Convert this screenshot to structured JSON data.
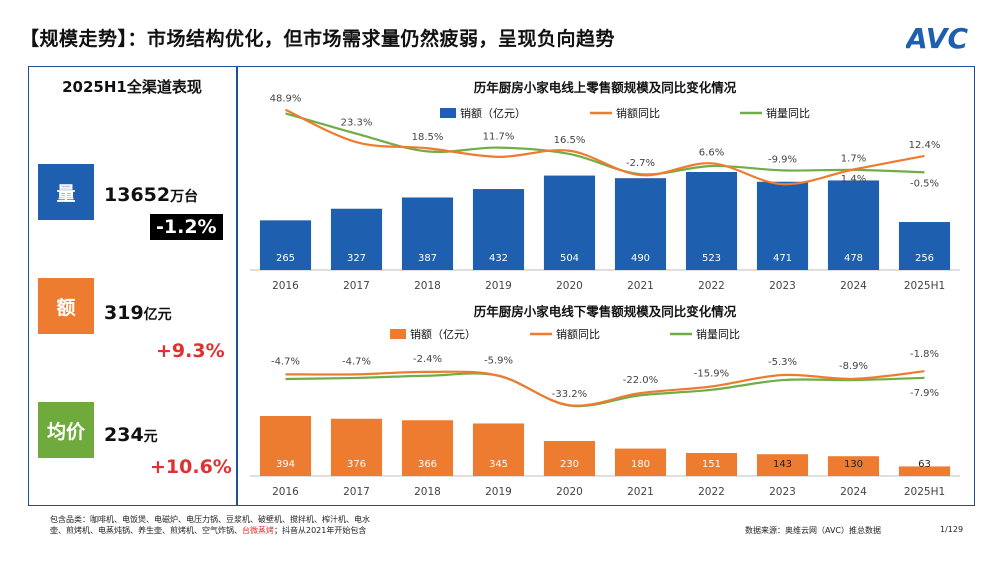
{
  "title": "【规模走势】：市场结构优化，但市场需求量仍然疲弱，呈现负向趋势",
  "logo_text": "AVC",
  "left_panel": {
    "title": "2025H1全渠道表现",
    "metrics": [
      {
        "tile": "量",
        "value": "13652",
        "unit": "万台",
        "change": "-1.2%",
        "color": "#1f5fb0"
      },
      {
        "tile": "额",
        "value": "319",
        "unit": "亿元",
        "change": "+9.3%",
        "color": "#ee7c30"
      },
      {
        "tile": "均价",
        "value": "234",
        "unit": "元",
        "change": "+10.6%",
        "color": "#6faa3d"
      }
    ]
  },
  "footer": {
    "line1": "包含品类：咖啡机、电饭煲、电磁炉、电压力锅、豆浆机、破壁机、搅拌机、榨汁机、电水",
    "line2_a": "壶、煎烤机、电蒸炖锅、养生壶、煎烤机、空气炸锅、",
    "line2_red": "台微蒸烤",
    "line2_b": "；抖音从2021年开始包含",
    "source": "数据来源：奥维云网（AVC）推总数据",
    "page": "1/129"
  },
  "colors": {
    "blue_bar": "#1f5fb0",
    "orange_bar": "#ee7c30",
    "orange_line": "#ee7c30",
    "green_line": "#70ad47"
  },
  "chart_data": [
    {
      "type": "bar",
      "title": "历年厨房小家电线上零售额规模及同比变化情况",
      "categories": [
        "2016",
        "2017",
        "2018",
        "2019",
        "2020",
        "2021",
        "2022",
        "2023",
        "2024",
        "2025H1"
      ],
      "legend": [
        "销额（亿元）",
        "销额同比",
        "销量同比"
      ],
      "series": [
        {
          "name": "销额（亿元）",
          "kind": "bar",
          "values": [
            265,
            327,
            387,
            432,
            504,
            490,
            523,
            471,
            478,
            256
          ]
        },
        {
          "name": "销额同比",
          "kind": "line",
          "values": [
            48.9,
            23.3,
            18.5,
            11.7,
            16.5,
            -2.7,
            6.6,
            -9.9,
            1.7,
            12.4
          ]
        },
        {
          "name": "销量同比",
          "kind": "line",
          "values": [
            46.0,
            30.0,
            16.0,
            19.0,
            14.0,
            -2.0,
            4.5,
            1.0,
            1.4,
            -0.5
          ]
        }
      ],
      "labels": [
        {
          "i": 0,
          "text": "48.9%"
        },
        {
          "i": 1,
          "text": "23.3%"
        },
        {
          "i": 2,
          "text": "18.5%"
        },
        {
          "i": 3,
          "text": "11.7%"
        },
        {
          "i": 4,
          "text": "16.5%"
        },
        {
          "i": 5,
          "text": "-2.7%"
        },
        {
          "i": 6,
          "text": "6.6%"
        },
        {
          "i": 7,
          "text": "-9.9%"
        },
        {
          "i": 8,
          "text": "1.7%"
        },
        {
          "i": 8,
          "text": "1.4%"
        },
        {
          "i": 9,
          "text": "12.4%"
        },
        {
          "i": 9,
          "text": "-0.5%"
        }
      ],
      "ylim_bar": [
        0,
        620
      ],
      "ylim_line": [
        -20,
        55
      ]
    },
    {
      "type": "bar",
      "title": "历年厨房小家电线下零售额规模及同比变化情况",
      "categories": [
        "2016",
        "2017",
        "2018",
        "2019",
        "2020",
        "2021",
        "2022",
        "2023",
        "2024",
        "2025H1"
      ],
      "legend": [
        "销额（亿元）",
        "销额同比",
        "销量同比"
      ],
      "series": [
        {
          "name": "销额（亿元）",
          "kind": "bar",
          "values": [
            394,
            376,
            366,
            345,
            230,
            180,
            151,
            143,
            130,
            63
          ]
        },
        {
          "name": "销额同比",
          "kind": "line",
          "values": [
            -4.7,
            -4.7,
            -2.4,
            -5.9,
            -33.2,
            -22.0,
            -15.9,
            -5.3,
            -8.9,
            -1.8
          ]
        },
        {
          "name": "销量同比",
          "kind": "line",
          "values": [
            -9.0,
            -8.0,
            -6.0,
            -6.0,
            -33.5,
            -24.0,
            -19.0,
            -10.0,
            -10.0,
            -7.9
          ]
        }
      ],
      "labels": [
        {
          "i": 0,
          "text": "-4.7%"
        },
        {
          "i": 1,
          "text": "-4.7%"
        },
        {
          "i": 2,
          "text": "-2.4%"
        },
        {
          "i": 3,
          "text": "-5.9%"
        },
        {
          "i": 4,
          "text": "-33.2%"
        },
        {
          "i": 5,
          "text": "-22.0%"
        },
        {
          "i": 6,
          "text": "-15.9%"
        },
        {
          "i": 7,
          "text": "-5.3%"
        },
        {
          "i": 8,
          "text": "-8.9%"
        },
        {
          "i": 9,
          "text": "-1.8%"
        },
        {
          "i": 9,
          "text": "-7.9%"
        }
      ],
      "ylim_bar": [
        0,
        700
      ],
      "ylim_line": [
        -45,
        15
      ]
    }
  ]
}
